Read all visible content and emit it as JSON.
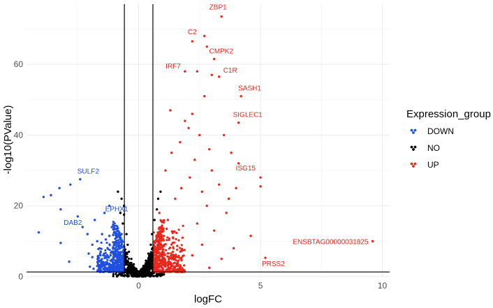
{
  "chart_data": {
    "type": "scatter",
    "title": "",
    "xlabel": "logFC",
    "ylabel": "-log10(PValue)",
    "xlim": [
      -4.6,
      10.3
    ],
    "ylim": [
      0,
      77
    ],
    "x_ticks": [
      0,
      5,
      10
    ],
    "y_ticks": [
      0,
      20,
      40,
      60
    ],
    "grid": true,
    "legend": {
      "title": "Expression_group",
      "placement": "right",
      "entries": [
        {
          "name": "DOWN",
          "color": "#2050E0"
        },
        {
          "name": "NO",
          "color": "#000000"
        },
        {
          "name": "UP",
          "color": "#E8281C"
        }
      ]
    },
    "reference_lines": {
      "vertical": [
        -0.585,
        0.585
      ],
      "horizontal": [
        1.3
      ]
    },
    "series": [
      {
        "name": "DOWN",
        "color": "#2050E0",
        "points": [
          [
            -4.1,
            12.5
          ],
          [
            -3.2,
            9.5
          ],
          [
            -3.2,
            19
          ],
          [
            -2.8,
            26
          ],
          [
            -2.4,
            27.5
          ],
          [
            -3.6,
            23
          ],
          [
            -3.9,
            22.5
          ],
          [
            -3.25,
            25
          ],
          [
            -2.85,
            4.2
          ],
          [
            -2.5,
            17
          ],
          [
            -2.3,
            14
          ],
          [
            -2.1,
            12
          ],
          [
            -1.9,
            9
          ],
          [
            -1.8,
            16
          ],
          [
            -1.7,
            10
          ],
          [
            -1.9,
            5.5
          ],
          [
            -2.05,
            6.5
          ],
          [
            -1.4,
            18
          ],
          [
            -1.2,
            20
          ],
          [
            -1.1,
            14
          ],
          [
            -1.5,
            12
          ],
          [
            -1.35,
            10.5
          ],
          [
            -1.6,
            8
          ],
          [
            -1.45,
            6
          ],
          [
            -1.3,
            4
          ],
          [
            -1.7,
            3
          ],
          [
            -1.55,
            2.5
          ],
          [
            -1.25,
            2
          ],
          [
            -1.0,
            9
          ],
          [
            -0.9,
            11
          ],
          [
            -0.85,
            7
          ],
          [
            -0.75,
            5
          ],
          [
            -0.7,
            3
          ],
          [
            -0.95,
            4.5
          ],
          [
            -1.15,
            6
          ],
          [
            -1.05,
            8
          ],
          [
            -0.8,
            9.5
          ],
          [
            -0.7,
            12
          ],
          [
            -0.9,
            13.5
          ],
          [
            -1.2,
            11.5
          ],
          [
            -1.6,
            4.5
          ],
          [
            -1.4,
            2.3
          ],
          [
            -0.8,
            2.2
          ],
          [
            -1.0,
            2.6
          ],
          [
            -1.3,
            3.5
          ],
          [
            -0.75,
            6.5
          ],
          [
            -1.85,
            2.2
          ],
          [
            -2.0,
            2.8
          ],
          [
            -1.1,
            4.8
          ],
          [
            -0.65,
            4.2
          ]
        ]
      },
      {
        "name": "NO",
        "color": "#000000",
        "points": [
          [
            -0.85,
            24
          ],
          [
            -0.7,
            22
          ],
          [
            -0.75,
            18
          ],
          [
            -0.65,
            15
          ],
          [
            -0.6,
            17.5
          ],
          [
            0.9,
            24
          ],
          [
            0.8,
            22
          ],
          [
            0.75,
            19
          ],
          [
            0.65,
            16
          ],
          [
            -0.6,
            20
          ],
          [
            -0.5,
            12
          ],
          [
            -0.45,
            9
          ],
          [
            -0.4,
            7
          ],
          [
            -0.3,
            5
          ],
          [
            -0.2,
            3.5
          ],
          [
            -0.1,
            2.2
          ],
          [
            0.0,
            1.2
          ],
          [
            0.1,
            2
          ],
          [
            0.2,
            3
          ],
          [
            0.3,
            4.5
          ],
          [
            0.4,
            6.5
          ],
          [
            0.5,
            9
          ],
          [
            0.55,
            12
          ],
          [
            -0.55,
            6
          ],
          [
            -0.35,
            3
          ],
          [
            0.35,
            3
          ],
          [
            0.5,
            5
          ],
          [
            -0.5,
            4
          ]
        ]
      },
      {
        "name": "UP",
        "color": "#E8281C",
        "points": [
          [
            3.4,
            73.5
          ],
          [
            2.7,
            68
          ],
          [
            2.2,
            66.5
          ],
          [
            2.8,
            65
          ],
          [
            3.1,
            61.5
          ],
          [
            1.9,
            58
          ],
          [
            2.4,
            58
          ],
          [
            3.0,
            57
          ],
          [
            3.3,
            56.5
          ],
          [
            4.2,
            51
          ],
          [
            2.7,
            51
          ],
          [
            4.1,
            43.5
          ],
          [
            1.3,
            47
          ],
          [
            2.2,
            46
          ],
          [
            3.8,
            35
          ],
          [
            4.1,
            32
          ],
          [
            5.0,
            28
          ],
          [
            5.0,
            25.5
          ],
          [
            4.0,
            25
          ],
          [
            4.6,
            11.5
          ],
          [
            9.6,
            10
          ],
          [
            5.2,
            5.3
          ],
          [
            1.9,
            44
          ],
          [
            2.5,
            40
          ],
          [
            1.7,
            38
          ],
          [
            2.9,
            36
          ],
          [
            1.1,
            30
          ],
          [
            2.1,
            28
          ],
          [
            3.3,
            26
          ],
          [
            1.5,
            22
          ],
          [
            2.8,
            20
          ],
          [
            3.6,
            18
          ],
          [
            1.2,
            16
          ],
          [
            2.4,
            15
          ],
          [
            3.1,
            13
          ],
          [
            1.8,
            11
          ],
          [
            2.6,
            9
          ],
          [
            3.9,
            8
          ],
          [
            1.4,
            7
          ],
          [
            2.2,
            6
          ],
          [
            3.4,
            5
          ],
          [
            0.9,
            4
          ],
          [
            1.6,
            3
          ],
          [
            2.9,
            2.5
          ],
          [
            1.0,
            2
          ],
          [
            0.8,
            12
          ],
          [
            1.05,
            9
          ],
          [
            0.95,
            6.5
          ],
          [
            1.25,
            5.5
          ],
          [
            0.75,
            3.5
          ],
          [
            3.7,
            22
          ],
          [
            2.3,
            33
          ],
          [
            1.75,
            25
          ],
          [
            3.0,
            30
          ],
          [
            1.35,
            35
          ],
          [
            2.05,
            42
          ],
          [
            3.5,
            40
          ],
          [
            2.6,
            24
          ],
          [
            0.85,
            18
          ],
          [
            1.15,
            13.5
          ]
        ]
      }
    ],
    "annotations": [
      {
        "text": "ZBP1",
        "x": 3.4,
        "y": 73.5,
        "group": "UP"
      },
      {
        "text": "C2",
        "x": 2.2,
        "y": 66.5,
        "group": "UP"
      },
      {
        "text": "CMPK2",
        "x": 3.1,
        "y": 61.5,
        "group": "UP"
      },
      {
        "text": "IRF7",
        "x": 1.9,
        "y": 58,
        "group": "UP"
      },
      {
        "text": "C1R",
        "x": 3.3,
        "y": 56.5,
        "group": "UP"
      },
      {
        "text": "SASH1",
        "x": 4.2,
        "y": 51,
        "group": "UP"
      },
      {
        "text": "SIGLEC1",
        "x": 4.1,
        "y": 43.5,
        "group": "UP"
      },
      {
        "text": "ISG15",
        "x": 4.1,
        "y": 32,
        "group": "UP"
      },
      {
        "text": "ENSBTAG00000031825",
        "x": 9.6,
        "y": 10,
        "group": "UP"
      },
      {
        "text": "PRSS2",
        "x": 5.2,
        "y": 5.3,
        "group": "UP"
      },
      {
        "text": "SULF2",
        "x": -2.4,
        "y": 27.5,
        "group": "DOWN"
      },
      {
        "text": "EPHX1",
        "x": -1.2,
        "y": 20,
        "group": "DOWN"
      },
      {
        "text": "DAB2",
        "x": -2.5,
        "y": 17,
        "group": "DOWN"
      }
    ]
  }
}
